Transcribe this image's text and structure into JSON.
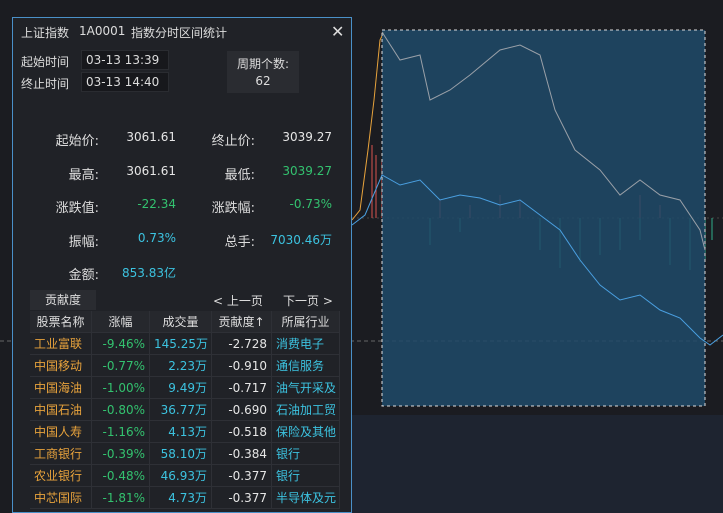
{
  "dialog": {
    "title": {
      "index": "上证指数",
      "code": "1A0001",
      "name": "指数分时区间统计"
    },
    "start_label": "起始时间",
    "start_time": "03-13 13:39",
    "end_label": "终止时间",
    "end_time": "03-13 14:40",
    "period_label": "周期个数:",
    "period_count": "62",
    "stats": [
      {
        "label": "起始价:",
        "value": "3061.61",
        "color": "#e6e6e6"
      },
      {
        "label": "终止价:",
        "value": "3039.27",
        "color": "#e6e6e6"
      },
      {
        "label": "最高:",
        "value": "3061.61",
        "color": "#e6e6e6"
      },
      {
        "label": "最低:",
        "value": "3039.27",
        "color": "#33c26f"
      },
      {
        "label": "涨跌值:",
        "value": "-22.34",
        "color": "#33c26f"
      },
      {
        "label": "涨跌幅:",
        "value": "-0.73%",
        "color": "#33c26f"
      },
      {
        "label": "振幅:",
        "value": "0.73%",
        "color": "#3cc3e0"
      },
      {
        "label": "总手:",
        "value": "7030.46万",
        "color": "#3cc3e0"
      },
      {
        "label": "金额:",
        "value": "853.83亿",
        "color": "#3cc3e0"
      }
    ],
    "tab": "贡献度",
    "prev_page": "< 上一页",
    "next_page": "下一页 >",
    "table": {
      "header": [
        "股票名称",
        "涨幅",
        "成交量",
        "贡献度↑",
        "所属行业"
      ],
      "rows": [
        [
          "工业富联",
          "-9.46%",
          "145.25万",
          "-2.728",
          "消费电子"
        ],
        [
          "中国移动",
          "-0.77%",
          "2.23万",
          "-0.910",
          "通信服务"
        ],
        [
          "中国海油",
          "-1.00%",
          "9.49万",
          "-0.717",
          "油气开采及"
        ],
        [
          "中国石油",
          "-0.80%",
          "36.77万",
          "-0.690",
          "石油加工贸"
        ],
        [
          "中国人寿",
          "-1.16%",
          "4.13万",
          "-0.518",
          "保险及其他"
        ],
        [
          "工商银行",
          "-0.39%",
          "58.10万",
          "-0.384",
          "银行"
        ],
        [
          "农业银行",
          "-0.48%",
          "46.93万",
          "-0.377",
          "银行"
        ],
        [
          "中芯国际",
          "-1.81%",
          "4.73万",
          "-0.377",
          "半导体及元"
        ]
      ]
    }
  }
}
